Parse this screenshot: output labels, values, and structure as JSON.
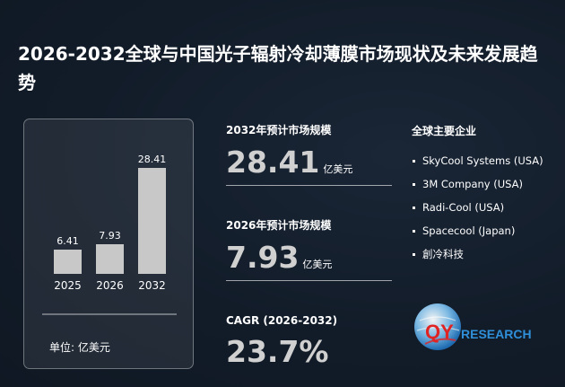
{
  "title": "2026-2032全球与中国光子辐射冷却薄膜市场现状及未来发展趋势",
  "chart_data": {
    "type": "bar",
    "categories": [
      "2025",
      "2026",
      "2032"
    ],
    "values": [
      6.41,
      7.93,
      28.41
    ],
    "value_labels": [
      "6.41",
      "7.93",
      "28.41"
    ],
    "ylim": [
      0,
      30
    ],
    "grid": false,
    "bar_color": "#c8c8c8"
  },
  "unit_label": "单位:  亿美元",
  "metrics": {
    "m2032": {
      "label": "2032年预计市场规模",
      "value": "28.41",
      "unit": "亿美元"
    },
    "m2026": {
      "label": "2026年预计市场规模",
      "value": "7.93",
      "unit": "亿美元"
    },
    "cagr": {
      "label": "CAGR  (2026-2032)",
      "value": "23.7%"
    }
  },
  "companies": {
    "heading": "全球主要企业",
    "items": [
      "SkyCool Systems (USA)",
      "3M Company (USA)",
      "Radi-Cool (USA)",
      "Spacecool (Japan)",
      "創冷科技"
    ]
  },
  "logo": {
    "icon": "globe-icon",
    "text_q": "QY",
    "text_r": "RESEARCH",
    "color": "#2f8fd8",
    "accent": "#e02424"
  }
}
